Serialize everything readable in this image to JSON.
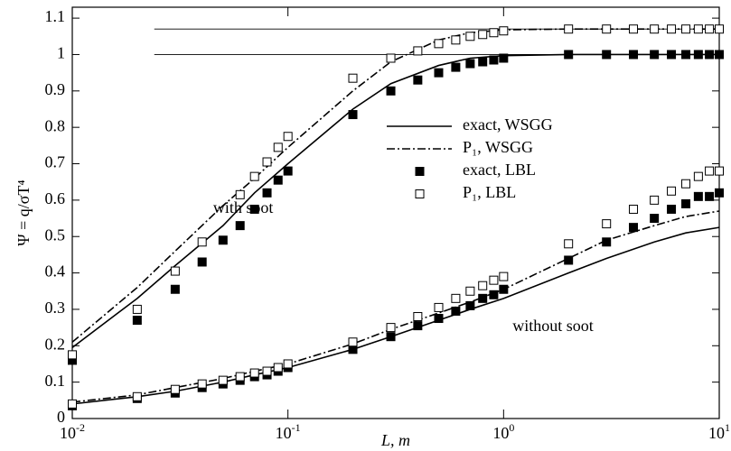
{
  "chart_data": {
    "type": "line",
    "y_label": "Ψ = q/σT⁴",
    "x_label": "L, m",
    "log_x": true,
    "xlim": [
      0.01,
      10
    ],
    "ylim": [
      0,
      1.13
    ],
    "xticks": [
      {
        "value": 0.01,
        "label": "10",
        "exponent": "-2"
      },
      {
        "value": 0.1,
        "label": "10",
        "exponent": "-1"
      },
      {
        "value": 1,
        "label": "10",
        "exponent": "0"
      },
      {
        "value": 10,
        "label": "10",
        "exponent": "1"
      }
    ],
    "yticks": [
      0,
      0.1,
      0.2,
      0.3,
      0.4,
      0.5,
      0.6,
      0.7,
      0.8,
      0.9,
      1,
      1.1
    ],
    "reference_lines": [
      {
        "y": 1,
        "x": [
          0.024,
          10
        ]
      },
      {
        "y": 1.07,
        "x": [
          0.024,
          10
        ]
      }
    ],
    "series": [
      {
        "name": "exact, WSGG",
        "style": "solid",
        "color": "#000000",
        "curves": [
          {
            "x": [
              0.01,
              0.02,
              0.03,
              0.05,
              0.07,
              0.1,
              0.2,
              0.3,
              0.5,
              0.7,
              1,
              2,
              10
            ],
            "values": [
              0.195,
              0.33,
              0.42,
              0.53,
              0.62,
              0.7,
              0.85,
              0.92,
              0.97,
              0.99,
              0.997,
              1.0,
              1.0
            ]
          },
          {
            "x": [
              0.01,
              0.02,
              0.03,
              0.05,
              0.07,
              0.1,
              0.2,
              0.3,
              0.5,
              0.7,
              1,
              2,
              3,
              5,
              7,
              10
            ],
            "values": [
              0.04,
              0.06,
              0.075,
              0.1,
              0.12,
              0.14,
              0.19,
              0.225,
              0.27,
              0.3,
              0.33,
              0.4,
              0.44,
              0.485,
              0.51,
              0.525
            ]
          }
        ]
      },
      {
        "name": "P₁, WSGG",
        "style": "dashdot",
        "color": "#000000",
        "curves": [
          {
            "x": [
              0.01,
              0.02,
              0.03,
              0.05,
              0.07,
              0.1,
              0.2,
              0.3,
              0.5,
              0.7,
              1,
              2,
              10
            ],
            "values": [
              0.21,
              0.36,
              0.46,
              0.585,
              0.66,
              0.745,
              0.9,
              0.98,
              1.04,
              1.06,
              1.068,
              1.07,
              1.07
            ]
          },
          {
            "x": [
              0.01,
              0.02,
              0.03,
              0.05,
              0.07,
              0.1,
              0.2,
              0.3,
              0.5,
              0.7,
              1,
              2,
              3,
              5,
              7,
              10
            ],
            "values": [
              0.045,
              0.065,
              0.085,
              0.11,
              0.13,
              0.15,
              0.205,
              0.245,
              0.29,
              0.32,
              0.355,
              0.44,
              0.49,
              0.53,
              0.555,
              0.57
            ]
          }
        ]
      },
      {
        "name": "exact, LBL",
        "style": "filled-square",
        "color": "#000000",
        "curves": [
          {
            "x": [
              0.01,
              0.02,
              0.03,
              0.04,
              0.05,
              0.06,
              0.07,
              0.08,
              0.09,
              0.1,
              0.2,
              0.3,
              0.4,
              0.5,
              0.6,
              0.7,
              0.8,
              0.9,
              1,
              2,
              3,
              4,
              5,
              6,
              7,
              8,
              9,
              10
            ],
            "values": [
              0.16,
              0.27,
              0.355,
              0.43,
              0.49,
              0.53,
              0.575,
              0.62,
              0.655,
              0.68,
              0.835,
              0.9,
              0.93,
              0.95,
              0.965,
              0.975,
              0.98,
              0.985,
              0.99,
              1.0,
              1.0,
              1.0,
              1.0,
              1.0,
              1.0,
              1.0,
              1.0,
              1.0
            ]
          },
          {
            "x": [
              0.01,
              0.02,
              0.03,
              0.04,
              0.05,
              0.06,
              0.07,
              0.08,
              0.09,
              0.1,
              0.2,
              0.3,
              0.4,
              0.5,
              0.6,
              0.7,
              0.8,
              0.9,
              1,
              2,
              3,
              4,
              5,
              6,
              7,
              8,
              9,
              10
            ],
            "values": [
              0.035,
              0.055,
              0.07,
              0.085,
              0.095,
              0.105,
              0.115,
              0.12,
              0.13,
              0.14,
              0.19,
              0.225,
              0.255,
              0.275,
              0.295,
              0.31,
              0.33,
              0.34,
              0.355,
              0.435,
              0.485,
              0.525,
              0.55,
              0.575,
              0.59,
              0.61,
              0.61,
              0.62
            ]
          }
        ]
      },
      {
        "name": "P₁, LBL",
        "style": "open-square",
        "color": "#000000",
        "curves": [
          {
            "x": [
              0.01,
              0.02,
              0.03,
              0.04,
              0.05,
              0.06,
              0.07,
              0.08,
              0.09,
              0.1,
              0.2,
              0.3,
              0.4,
              0.5,
              0.6,
              0.7,
              0.8,
              0.9,
              1,
              2,
              3,
              4,
              5,
              6,
              7,
              8,
              9,
              10
            ],
            "values": [
              0.175,
              0.3,
              0.405,
              0.485,
              null,
              0.615,
              0.665,
              0.705,
              0.745,
              0.775,
              0.935,
              0.99,
              1.01,
              1.03,
              1.04,
              1.05,
              1.055,
              1.06,
              1.065,
              1.07,
              1.07,
              1.07,
              1.07,
              1.07,
              1.07,
              1.07,
              1.07,
              1.07
            ]
          },
          {
            "x": [
              0.01,
              0.02,
              0.03,
              0.04,
              0.05,
              0.06,
              0.07,
              0.08,
              0.09,
              0.1,
              0.2,
              0.3,
              0.4,
              0.5,
              0.6,
              0.7,
              0.8,
              0.9,
              1,
              2,
              3,
              4,
              5,
              6,
              7,
              8,
              9,
              10
            ],
            "values": [
              0.04,
              0.06,
              0.08,
              0.095,
              0.105,
              0.115,
              0.125,
              0.13,
              0.14,
              0.15,
              0.21,
              0.25,
              0.28,
              0.305,
              0.33,
              0.35,
              0.365,
              0.38,
              0.39,
              0.48,
              0.535,
              0.575,
              0.6,
              0.625,
              0.645,
              0.665,
              0.68,
              0.68
            ]
          }
        ]
      }
    ],
    "annotations": [
      {
        "text": "with soot",
        "x": 0.045,
        "y": 0.575
      },
      {
        "text": "without soot",
        "x": 1.1,
        "y": 0.25
      }
    ]
  }
}
